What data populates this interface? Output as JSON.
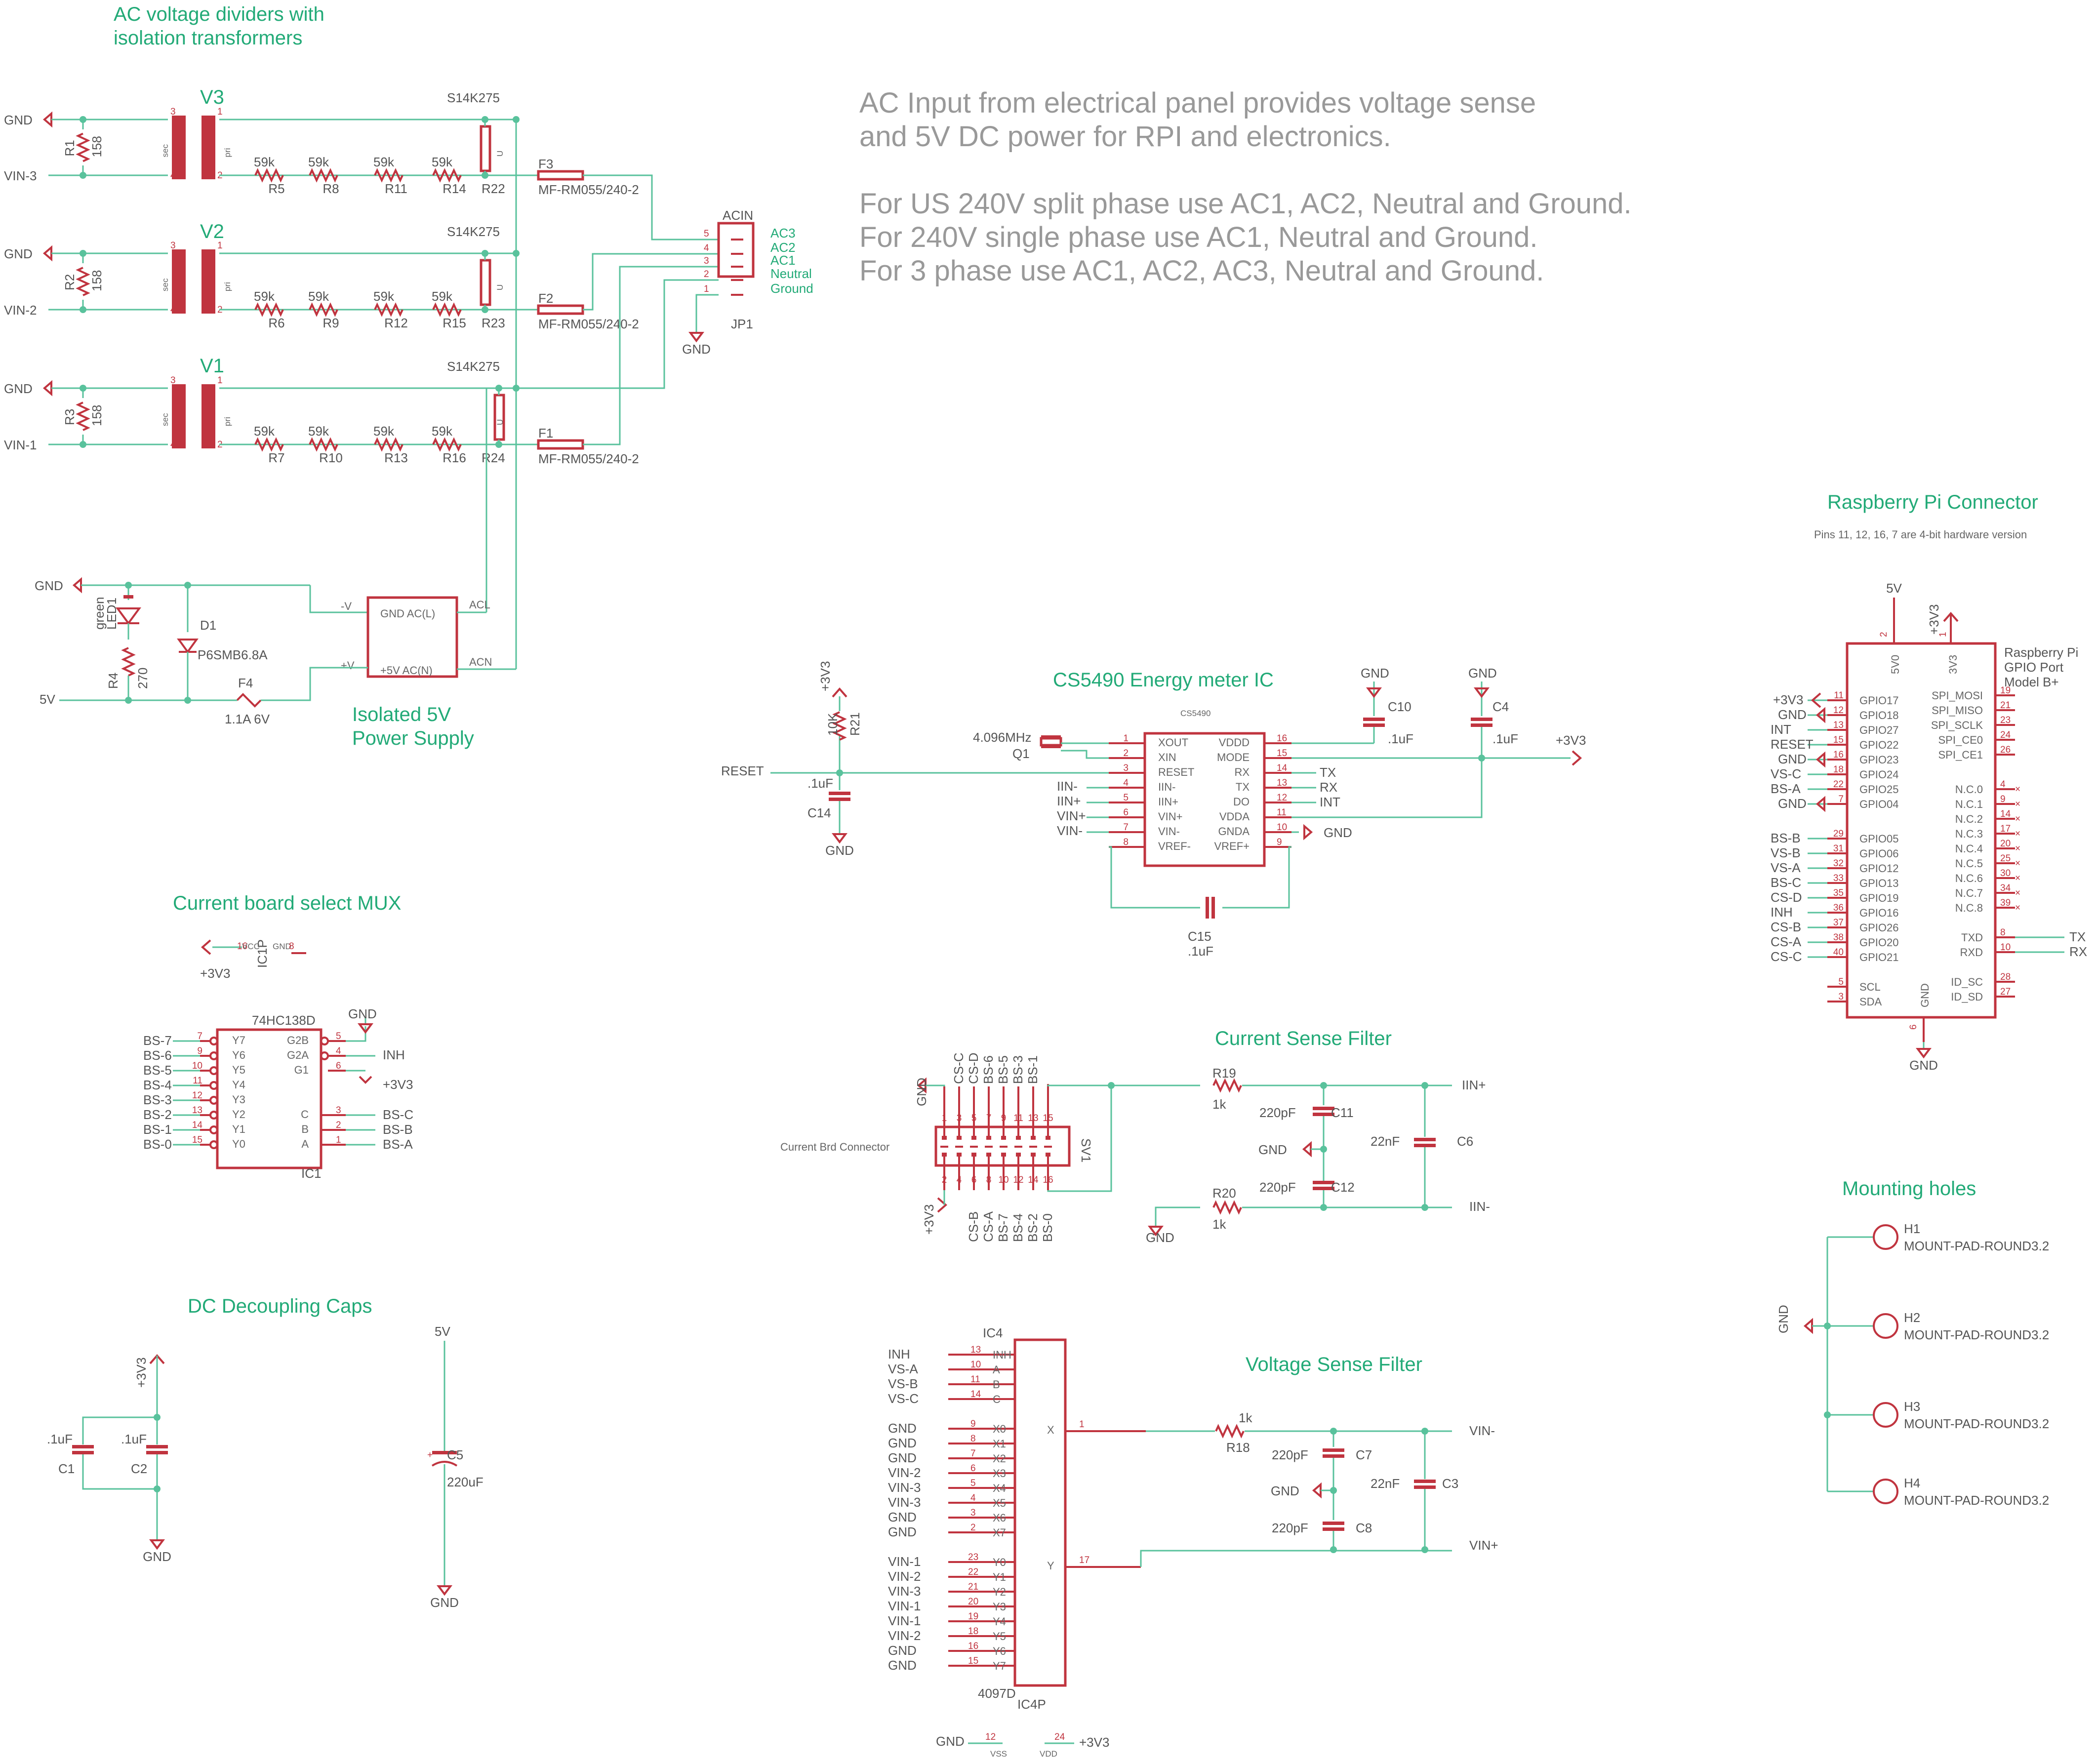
{
  "headings": {
    "ac_dividers_1": "AC voltage dividers with",
    "ac_dividers_2": "isolation transformers",
    "isolated_1": "Isolated 5V",
    "isolated_2": "Power Supply",
    "cs5490": "CS5490 Energy meter IC",
    "mux": "Current board select MUX",
    "decoupling": "DC Decoupling Caps",
    "current_filter": "Current Sense Filter",
    "voltage_filter": "Voltage Sense Filter",
    "rpi": "Raspberry Pi Connector",
    "rpi_note": "Pins 11, 12, 16, 7 are 4-bit hardware version",
    "mounting": "Mounting holes"
  },
  "notes": [
    "AC Input from electrical panel provides voltage sense",
    "and 5V DC power for RPI and electronics.",
    "",
    "For US 240V split phase use AC1, AC2, Neutral and Ground.",
    "For 240V single phase use AC1, Neutral and Ground.",
    "For 3 phase use AC1, AC2, AC3, Neutral and Ground."
  ],
  "phases": [
    {
      "name": "V3",
      "r_top": "R1",
      "vin": "VIN-3",
      "fuse": "F3",
      "mov": "R22",
      "divider": [
        "R5",
        "R8",
        "R11",
        "R14"
      ]
    },
    {
      "name": "V2",
      "r_top": "R2",
      "vin": "VIN-2",
      "fuse": "F2",
      "mov": "R23",
      "divider": [
        "R6",
        "R9",
        "R12",
        "R15"
      ]
    },
    {
      "name": "V1",
      "r_top": "R3",
      "vin": "VIN-1",
      "fuse": "F1",
      "mov": "R24",
      "divider": [
        "R7",
        "R10",
        "R13",
        "R16"
      ]
    }
  ],
  "common": {
    "gnd": "GND",
    "r158": "158",
    "r59k": "59k",
    "s14k": "S14K275",
    "fuse_part": "MF-RM055/240-2",
    "sec": "sec",
    "pri": "pri",
    "u": "U",
    "plus5v": "5V",
    "plus3v3": "+3V3",
    "one_k": "1k",
    "c01": ".1uF",
    "c220p": "220pF",
    "c22n": "22nF"
  },
  "acin": {
    "title": "ACIN",
    "ref": "JP1",
    "pins": [
      "5",
      "4",
      "3",
      "2",
      "1"
    ],
    "labels": [
      "AC3",
      "AC2",
      "AC1",
      "Neutral",
      "Ground"
    ]
  },
  "psu": {
    "gnd_acl": "GND  AC(L)",
    "p5_acn": "+5V  AC(N)",
    "minus_v": "-V",
    "plus_v": "+V",
    "acl": "ACL",
    "acn": "ACN",
    "led_color": "green",
    "led_ref": "LED1",
    "r4": "R4",
    "r4_val": "270",
    "d1": "D1",
    "d1_val": "P6SMB6.8A",
    "f4": "F4",
    "f4_val": "1.1A 6V"
  },
  "cs5490": {
    "part": "CS5490",
    "left_pins": [
      [
        "1",
        "XOUT"
      ],
      [
        "2",
        "XIN"
      ],
      [
        "3",
        "RESET"
      ],
      [
        "4",
        "IIN-"
      ],
      [
        "5",
        "IIN+"
      ],
      [
        "6",
        "VIN+"
      ],
      [
        "7",
        "VIN-"
      ],
      [
        "8",
        "VREF-"
      ]
    ],
    "right_pins": [
      [
        "16",
        "VDDD"
      ],
      [
        "15",
        "MODE"
      ],
      [
        "14",
        "RX"
      ],
      [
        "13",
        "TX"
      ],
      [
        "12",
        "DO"
      ],
      [
        "11",
        "VDDA"
      ],
      [
        "10",
        "GNDA"
      ],
      [
        "9",
        "VREF+"
      ]
    ],
    "left_nets": [
      "",
      "",
      "",
      "IIN-",
      "IIN+",
      "VIN+",
      "VIN-",
      ""
    ],
    "right_nets": [
      "",
      "",
      "TX",
      "RX",
      "INT",
      "",
      "",
      ""
    ],
    "crystal": "4.096MHz",
    "crystal_ref": "Q1",
    "r21": "R21",
    "r21_val": "10K",
    "c14": "C14",
    "c10": "C10",
    "c4": "C4",
    "c15": "C15",
    "reset": "RESET"
  },
  "mux": {
    "ic1p": "IC1P",
    "vcc": "VCC",
    "gnd_pin": "GND",
    "p16": "16",
    "p8": "8",
    "part": "74HC138D",
    "ref": "IC1",
    "left_pins": [
      [
        "7",
        "Y7",
        "BS-7"
      ],
      [
        "9",
        "Y6",
        "BS-6"
      ],
      [
        "10",
        "Y5",
        "BS-5"
      ],
      [
        "11",
        "Y4",
        "BS-4"
      ],
      [
        "12",
        "Y3",
        "BS-3"
      ],
      [
        "13",
        "Y2",
        "BS-2"
      ],
      [
        "14",
        "Y1",
        "BS-1"
      ],
      [
        "15",
        "Y0",
        "BS-0"
      ]
    ],
    "right_top": [
      [
        "5",
        "G2B",
        ""
      ],
      [
        "4",
        "G2A",
        "INH"
      ],
      [
        "6",
        "G1",
        "+3V3"
      ]
    ],
    "right_bot": [
      [
        "3",
        "C",
        "BS-C"
      ],
      [
        "2",
        "B",
        "BS-B"
      ],
      [
        "1",
        "A",
        "BS-A"
      ]
    ]
  },
  "connector": {
    "label": "Current Brd Connector",
    "ref": "SV1",
    "top_nums": [
      "1",
      "3",
      "5",
      "7",
      "9",
      "11",
      "13",
      "15"
    ],
    "bot_nums": [
      "2",
      "4",
      "6",
      "8",
      "10",
      "12",
      "14",
      "16"
    ],
    "top_nets": [
      "GND",
      "CS-C",
      "CS-D",
      "BS-6",
      "BS-5",
      "BS-3",
      "BS-1"
    ],
    "bot_nets": [
      "+3V3",
      "CS-B",
      "CS-A",
      "BS-7",
      "BS-4",
      "BS-2",
      "BS-0"
    ]
  },
  "current_filter": {
    "r19": "R19",
    "r20": "R20",
    "c11": "C11",
    "c12": "C12",
    "c6": "C6",
    "iin_p": "IIN+",
    "iin_m": "IIN-"
  },
  "voltage_filter": {
    "r18": "R18",
    "c7": "C7",
    "c8": "C8",
    "c3": "C3",
    "vin_m": "VIN-",
    "vin_p": "VIN+"
  },
  "ic4": {
    "ref": "IC4",
    "part": "4097D",
    "power": "IC4P",
    "vss": "VSS",
    "vdd": "VDD",
    "p12": "12",
    "p24": "24",
    "ctrl": [
      [
        "13",
        "INH",
        "INH"
      ],
      [
        "10",
        "A",
        "VS-A"
      ],
      [
        "11",
        "B",
        "VS-B"
      ],
      [
        "14",
        "C",
        "VS-C"
      ]
    ],
    "x": [
      [
        "9",
        "X0",
        "GND"
      ],
      [
        "8",
        "X1",
        "GND"
      ],
      [
        "7",
        "X2",
        "GND"
      ],
      [
        "6",
        "X3",
        "VIN-2"
      ],
      [
        "5",
        "X4",
        "VIN-3"
      ],
      [
        "4",
        "X5",
        "VIN-3"
      ],
      [
        "3",
        "X6",
        "GND"
      ],
      [
        "2",
        "X7",
        "GND"
      ]
    ],
    "y": [
      [
        "23",
        "Y0",
        "VIN-1"
      ],
      [
        "22",
        "Y1",
        "VIN-2"
      ],
      [
        "21",
        "Y2",
        "VIN-3"
      ],
      [
        "20",
        "Y3",
        "VIN-1"
      ],
      [
        "19",
        "Y4",
        "VIN-1"
      ],
      [
        "18",
        "Y5",
        "VIN-2"
      ],
      [
        "16",
        "Y6",
        "GND"
      ],
      [
        "15",
        "Y7",
        "GND"
      ]
    ],
    "x_out": [
      "1",
      "X"
    ],
    "y_out": [
      "17",
      "Y"
    ]
  },
  "decoupling": {
    "c1": "C1",
    "c2": "C2",
    "c5": "C5",
    "c5_val": "220uF"
  },
  "rpi": {
    "title1": "Raspberry Pi",
    "title2": "GPIO Port",
    "title3": "Model B+",
    "v5": "5V0",
    "v33": "3V3",
    "p2": "2",
    "p1": "1",
    "gnd_in": "GND",
    "p6": "6",
    "left": [
      [
        "11",
        "GPIO17",
        "+3V3"
      ],
      [
        "12",
        "GPIO18",
        "GND"
      ],
      [
        "13",
        "GPIO27",
        "INT"
      ],
      [
        "15",
        "GPIO22",
        "RESET"
      ],
      [
        "16",
        "GPIO23",
        "GND"
      ],
      [
        "18",
        "GPIO24",
        "VS-C"
      ],
      [
        "22",
        "GPIO25",
        "BS-A"
      ],
      [
        "7",
        "GPIO04",
        "GND"
      ],
      [
        "29",
        "GPIO05",
        "BS-B"
      ],
      [
        "31",
        "GPIO06",
        "VS-B"
      ],
      [
        "32",
        "GPIO12",
        "VS-A"
      ],
      [
        "33",
        "GPIO13",
        "BS-C"
      ],
      [
        "35",
        "GPIO19",
        "CS-D"
      ],
      [
        "36",
        "GPIO16",
        "INH"
      ],
      [
        "37",
        "GPIO26",
        "CS-B"
      ],
      [
        "38",
        "GPIO20",
        "CS-A"
      ],
      [
        "40",
        "GPIO21",
        "CS-C"
      ],
      [
        "5",
        "SCL",
        ""
      ],
      [
        "3",
        "SDA",
        ""
      ]
    ],
    "right": [
      [
        "19",
        "SPI_MOSI",
        ""
      ],
      [
        "21",
        "SPI_MISO",
        ""
      ],
      [
        "23",
        "SPI_SCLK",
        ""
      ],
      [
        "24",
        "SPI_CE0",
        ""
      ],
      [
        "26",
        "SPI_CE1",
        ""
      ],
      [
        "4",
        "N.C.0",
        ""
      ],
      [
        "9",
        "N.C.1",
        ""
      ],
      [
        "14",
        "N.C.2",
        ""
      ],
      [
        "17",
        "N.C.3",
        ""
      ],
      [
        "20",
        "N.C.4",
        ""
      ],
      [
        "25",
        "N.C.5",
        ""
      ],
      [
        "30",
        "N.C.6",
        ""
      ],
      [
        "34",
        "N.C.7",
        ""
      ],
      [
        "39",
        "N.C.8",
        ""
      ],
      [
        "8",
        "TXD",
        "TX"
      ],
      [
        "10",
        "RXD",
        "RX"
      ],
      [
        "28",
        "ID_SC",
        ""
      ],
      [
        "27",
        "ID_SD",
        ""
      ]
    ]
  },
  "holes": [
    {
      "ref": "H1",
      "part": "MOUNT-PAD-ROUND3.2"
    },
    {
      "ref": "H2",
      "part": "MOUNT-PAD-ROUND3.2"
    },
    {
      "ref": "H3",
      "part": "MOUNT-PAD-ROUND3.2"
    },
    {
      "ref": "H4",
      "part": "MOUNT-PAD-ROUND3.2"
    }
  ]
}
